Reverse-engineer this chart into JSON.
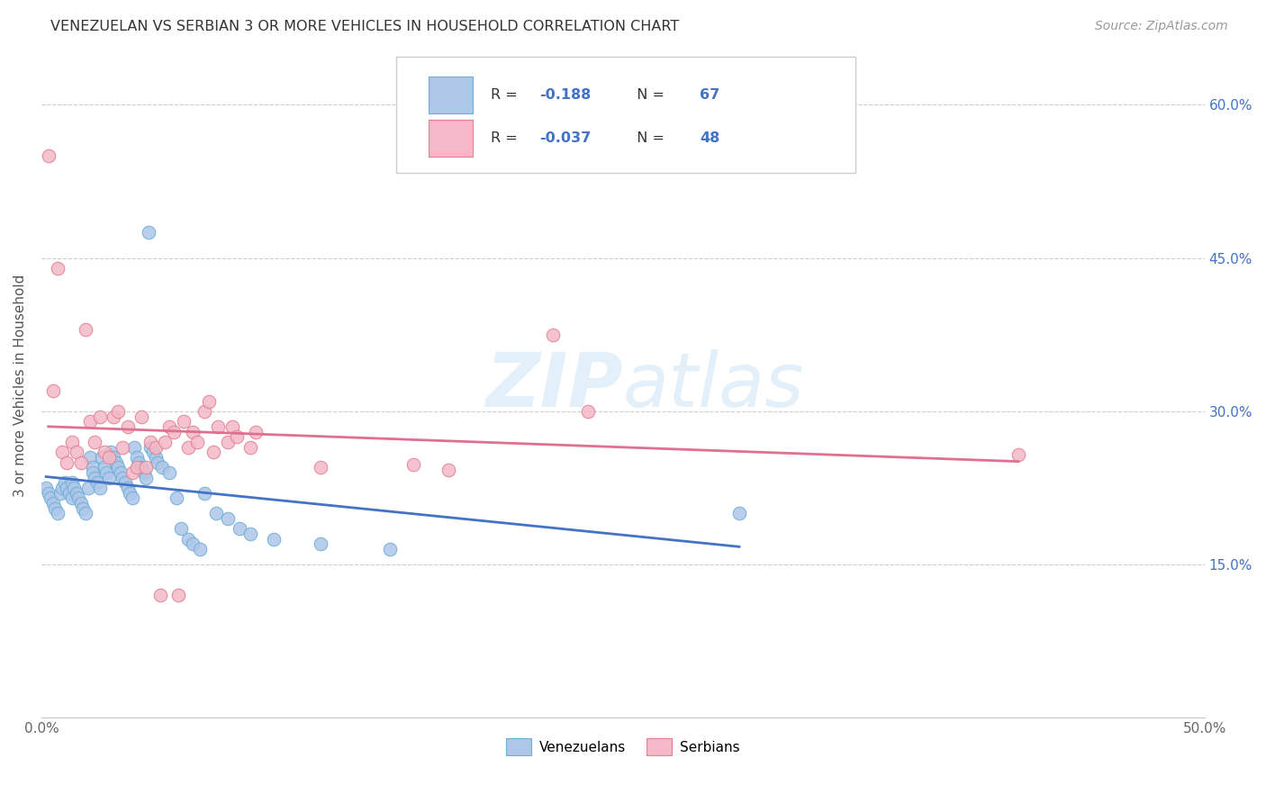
{
  "title": "VENEZUELAN VS SERBIAN 3 OR MORE VEHICLES IN HOUSEHOLD CORRELATION CHART",
  "source": "Source: ZipAtlas.com",
  "ylabel": "3 or more Vehicles in Household",
  "xlim": [
    0.0,
    0.5
  ],
  "ylim": [
    0.0,
    0.65
  ],
  "xtick_positions": [
    0.0,
    0.1,
    0.2,
    0.3,
    0.4,
    0.5
  ],
  "xtick_labels": [
    "0.0%",
    "",
    "",
    "",
    "",
    "50.0%"
  ],
  "ytick_positions": [
    0.15,
    0.3,
    0.45,
    0.6
  ],
  "ytick_labels": [
    "15.0%",
    "30.0%",
    "45.0%",
    "60.0%"
  ],
  "watermark_text": "ZIPatlas",
  "venezuelan_color": "#aec6e8",
  "venezuelan_edge": "#6baed6",
  "serbian_color": "#f4b8c8",
  "serbian_edge": "#e08090",
  "trendline_ven_color": "#4472c4",
  "trendline_ser_color": "#e07090",
  "legend_r_ven": "-0.188",
  "legend_n_ven": "67",
  "legend_r_ser": "-0.037",
  "legend_n_ser": "48",
  "venezuelan_x": [
    0.002,
    0.003,
    0.004,
    0.005,
    0.006,
    0.007,
    0.008,
    0.009,
    0.01,
    0.011,
    0.012,
    0.013,
    0.013,
    0.014,
    0.015,
    0.016,
    0.017,
    0.018,
    0.019,
    0.02,
    0.021,
    0.022,
    0.022,
    0.023,
    0.024,
    0.025,
    0.026,
    0.027,
    0.028,
    0.029,
    0.03,
    0.031,
    0.032,
    0.033,
    0.034,
    0.035,
    0.036,
    0.037,
    0.038,
    0.039,
    0.04,
    0.041,
    0.042,
    0.043,
    0.044,
    0.045,
    0.046,
    0.047,
    0.048,
    0.049,
    0.05,
    0.052,
    0.055,
    0.058,
    0.06,
    0.063,
    0.065,
    0.068,
    0.07,
    0.075,
    0.08,
    0.085,
    0.09,
    0.1,
    0.12,
    0.15,
    0.3
  ],
  "venezuelan_y": [
    0.225,
    0.22,
    0.215,
    0.21,
    0.205,
    0.2,
    0.22,
    0.225,
    0.23,
    0.225,
    0.22,
    0.215,
    0.23,
    0.225,
    0.22,
    0.215,
    0.21,
    0.205,
    0.2,
    0.225,
    0.255,
    0.245,
    0.24,
    0.235,
    0.23,
    0.225,
    0.255,
    0.245,
    0.24,
    0.235,
    0.26,
    0.255,
    0.25,
    0.245,
    0.24,
    0.235,
    0.23,
    0.225,
    0.22,
    0.215,
    0.265,
    0.255,
    0.25,
    0.245,
    0.24,
    0.235,
    0.475,
    0.265,
    0.26,
    0.255,
    0.25,
    0.245,
    0.24,
    0.215,
    0.185,
    0.175,
    0.17,
    0.165,
    0.22,
    0.2,
    0.195,
    0.185,
    0.18,
    0.175,
    0.17,
    0.165,
    0.2
  ],
  "serbian_x": [
    0.003,
    0.005,
    0.007,
    0.009,
    0.011,
    0.013,
    0.015,
    0.017,
    0.019,
    0.021,
    0.023,
    0.025,
    0.027,
    0.029,
    0.031,
    0.033,
    0.035,
    0.037,
    0.039,
    0.041,
    0.043,
    0.045,
    0.047,
    0.049,
    0.051,
    0.053,
    0.055,
    0.057,
    0.059,
    0.061,
    0.063,
    0.065,
    0.067,
    0.07,
    0.072,
    0.074,
    0.076,
    0.08,
    0.082,
    0.084,
    0.09,
    0.092,
    0.12,
    0.16,
    0.175,
    0.22,
    0.235,
    0.42
  ],
  "serbian_y": [
    0.55,
    0.32,
    0.44,
    0.26,
    0.25,
    0.27,
    0.26,
    0.25,
    0.38,
    0.29,
    0.27,
    0.295,
    0.26,
    0.255,
    0.295,
    0.3,
    0.265,
    0.285,
    0.24,
    0.245,
    0.295,
    0.245,
    0.27,
    0.265,
    0.12,
    0.27,
    0.285,
    0.28,
    0.12,
    0.29,
    0.265,
    0.28,
    0.27,
    0.3,
    0.31,
    0.26,
    0.285,
    0.27,
    0.285,
    0.275,
    0.265,
    0.28,
    0.245,
    0.248,
    0.243,
    0.375,
    0.3,
    0.258
  ]
}
